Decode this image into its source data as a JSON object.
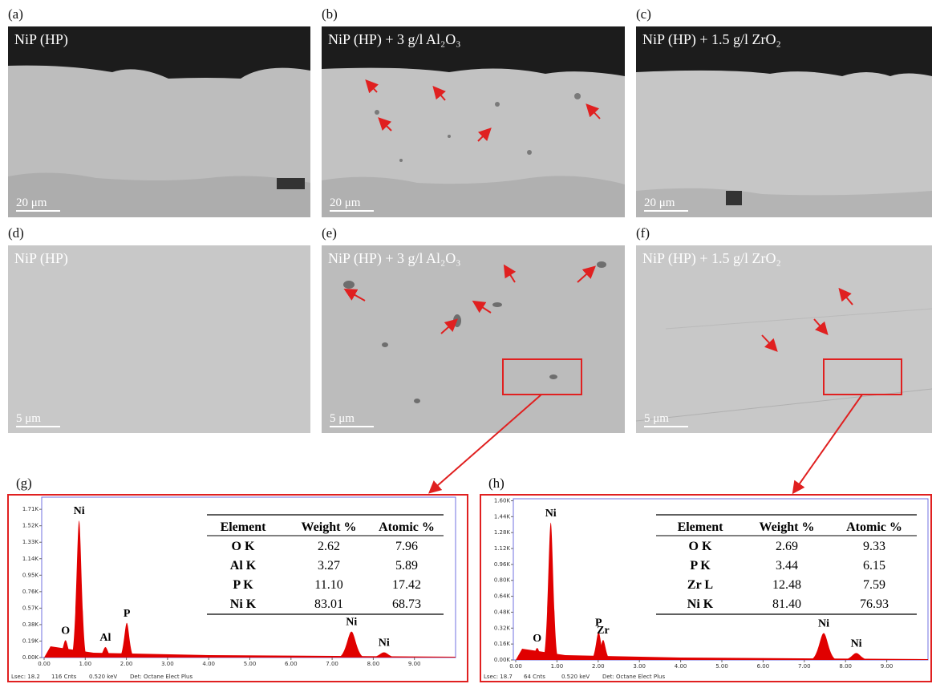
{
  "panels": [
    {
      "label": "(a)",
      "caption": "NiP (HP)",
      "scale_bar": "20 μm"
    },
    {
      "label": "(b)",
      "caption": "NiP (HP) + 3 g/l Al₂O₃",
      "scale_bar": "20 μm"
    },
    {
      "label": "(c)",
      "caption": "NiP (HP) + 1.5 g/l ZrO₂",
      "scale_bar": "20 μm"
    },
    {
      "label": "(d)",
      "caption": "NiP (HP)",
      "scale_bar": "5 μm"
    },
    {
      "label": "(e)",
      "caption": "NiP (HP) + 3 g/l Al₂O₃",
      "scale_bar": "5 μm"
    },
    {
      "label": "(f)",
      "caption": "NiP (HP) + 1.5 g/l ZrO₂",
      "scale_bar": "5 μm"
    }
  ],
  "spectra": [
    {
      "label": "(g)",
      "xlim": [
        0,
        10
      ],
      "xticks": [
        {
          "value": 0,
          "label": "0.00"
        },
        {
          "value": 1,
          "label": "1.00"
        },
        {
          "value": 2,
          "label": "2.00"
        },
        {
          "value": 3,
          "label": "3.00"
        },
        {
          "value": 4,
          "label": "4.00"
        },
        {
          "value": 5,
          "label": "5.00"
        },
        {
          "value": 6,
          "label": "6.00"
        },
        {
          "value": 7,
          "label": "7.00"
        },
        {
          "value": 8,
          "label": "8.00"
        },
        {
          "value": 9,
          "label": "9.00"
        }
      ],
      "ylim": [
        0,
        1.85
      ],
      "yticks": [
        {
          "value": 0,
          "label": "0.00K"
        },
        {
          "value": 0.19,
          "label": "0.19K"
        },
        {
          "value": 0.38,
          "label": "0.38K"
        },
        {
          "value": 0.57,
          "label": "0.57K"
        },
        {
          "value": 0.76,
          "label": "0.76K"
        },
        {
          "value": 0.95,
          "label": "0.95K"
        },
        {
          "value": 1.14,
          "label": "1.14K"
        },
        {
          "value": 1.33,
          "label": "1.33K"
        },
        {
          "value": 1.52,
          "label": "1.52K"
        },
        {
          "value": 1.71,
          "label": "1.71K"
        }
      ],
      "color": "#e00000",
      "peaks": [
        {
          "label": "O",
          "energy": 0.52,
          "height": 0.2
        },
        {
          "label": "Ni",
          "energy": 0.85,
          "height": 1.58
        },
        {
          "label": "Al",
          "energy": 1.49,
          "height": 0.12
        },
        {
          "label": "P",
          "energy": 2.01,
          "height": 0.4
        },
        {
          "label": "Ni",
          "energy": 7.47,
          "height": 0.3
        },
        {
          "label": "Ni",
          "energy": 8.26,
          "height": 0.06
        }
      ],
      "table": {
        "header": [
          "Element",
          "Weight %",
          "Atomic %"
        ],
        "rows": [
          [
            "O K",
            "2.62",
            "7.96"
          ],
          [
            "Al K",
            "3.27",
            "5.89"
          ],
          [
            "P K",
            "11.10",
            "17.42"
          ],
          [
            "Ni K",
            "83.01",
            "68.73"
          ]
        ]
      },
      "footer": [
        "Lsec: 18.2",
        "116 Cnts",
        "0.520 keV",
        "Det: Octane Elect Plus"
      ]
    },
    {
      "label": "(h)",
      "xlim": [
        0,
        10
      ],
      "xticks": [
        {
          "value": 0,
          "label": "0.00"
        },
        {
          "value": 1,
          "label": "1.00"
        },
        {
          "value": 2,
          "label": "2.00"
        },
        {
          "value": 3,
          "label": "3.00"
        },
        {
          "value": 4,
          "label": "4.00"
        },
        {
          "value": 5,
          "label": "5.00"
        },
        {
          "value": 6,
          "label": "6.00"
        },
        {
          "value": 7,
          "label": "7.00"
        },
        {
          "value": 8,
          "label": "8.00"
        },
        {
          "value": 9,
          "label": "9.00"
        }
      ],
      "ylim": [
        0,
        1.62
      ],
      "yticks": [
        {
          "value": 0,
          "label": "0.00K"
        },
        {
          "value": 0.16,
          "label": "0.16K"
        },
        {
          "value": 0.32,
          "label": "0.32K"
        },
        {
          "value": 0.48,
          "label": "0.48K"
        },
        {
          "value": 0.64,
          "label": "0.64K"
        },
        {
          "value": 0.8,
          "label": "0.80K"
        },
        {
          "value": 0.96,
          "label": "0.96K"
        },
        {
          "value": 1.12,
          "label": "1.12K"
        },
        {
          "value": 1.28,
          "label": "1.28K"
        },
        {
          "value": 1.44,
          "label": "1.44K"
        },
        {
          "value": 1.6,
          "label": "1.60K"
        }
      ],
      "color": "#e00000",
      "peaks": [
        {
          "label": "O",
          "energy": 0.52,
          "height": 0.12
        },
        {
          "label": "Ni",
          "energy": 0.85,
          "height": 1.38
        },
        {
          "label": "P",
          "energy": 2.01,
          "height": 0.28
        },
        {
          "label": "Zr",
          "energy": 2.12,
          "height": 0.2
        },
        {
          "label": "Ni",
          "energy": 7.47,
          "height": 0.27
        },
        {
          "label": "Ni",
          "energy": 8.26,
          "height": 0.07
        }
      ],
      "table": {
        "header": [
          "Element",
          "Weight %",
          "Atomic %"
        ],
        "rows": [
          [
            "O K",
            "2.69",
            "9.33"
          ],
          [
            "P K",
            "3.44",
            "6.15"
          ],
          [
            "Zr L",
            "12.48",
            "7.59"
          ],
          [
            "Ni K",
            "81.40",
            "76.93"
          ]
        ]
      },
      "footer": [
        "Lsec: 18.7",
        "64 Cnts",
        "0.520 keV",
        "Det: Octane Elect Plus"
      ]
    }
  ]
}
